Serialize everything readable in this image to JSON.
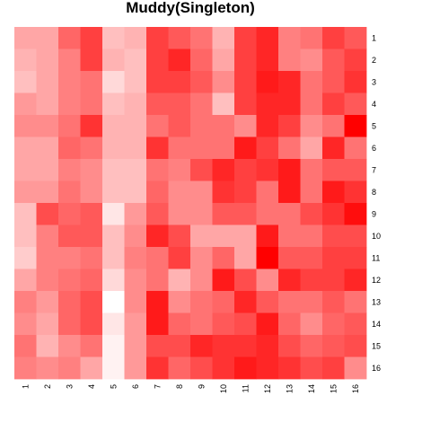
{
  "chart_data": {
    "type": "heatmap",
    "title": "Muddy(Singleton)",
    "xlabel": "",
    "ylabel": "",
    "x_categories": [
      "1",
      "2",
      "3",
      "4",
      "5",
      "6",
      "7",
      "8",
      "9",
      "10",
      "11",
      "12",
      "13",
      "14",
      "15",
      "16"
    ],
    "y_categories": [
      "1",
      "2",
      "3",
      "4",
      "5",
      "6",
      "7",
      "8",
      "9",
      "10",
      "11",
      "12",
      "13",
      "14",
      "15",
      "16"
    ],
    "value_range": [
      0,
      1
    ],
    "color_low": "#ffffff",
    "color_high": "#ff0000",
    "values": [
      [
        0.35,
        0.35,
        0.6,
        0.75,
        0.25,
        0.3,
        0.75,
        0.65,
        0.55,
        0.3,
        0.75,
        0.85,
        0.5,
        0.55,
        0.75,
        0.65
      ],
      [
        0.3,
        0.35,
        0.5,
        0.75,
        0.3,
        0.25,
        0.75,
        0.85,
        0.6,
        0.35,
        0.75,
        0.85,
        0.5,
        0.45,
        0.65,
        0.75
      ],
      [
        0.25,
        0.35,
        0.5,
        0.55,
        0.15,
        0.25,
        0.75,
        0.75,
        0.65,
        0.45,
        0.75,
        0.9,
        0.85,
        0.55,
        0.65,
        0.8
      ],
      [
        0.4,
        0.35,
        0.5,
        0.55,
        0.25,
        0.3,
        0.65,
        0.65,
        0.55,
        0.25,
        0.75,
        0.85,
        0.85,
        0.55,
        0.75,
        0.65
      ],
      [
        0.45,
        0.45,
        0.55,
        0.8,
        0.3,
        0.3,
        0.55,
        0.65,
        0.55,
        0.55,
        0.45,
        0.85,
        0.75,
        0.45,
        0.55,
        1.0
      ],
      [
        0.35,
        0.35,
        0.6,
        0.55,
        0.3,
        0.3,
        0.8,
        0.55,
        0.55,
        0.55,
        0.9,
        0.75,
        0.55,
        0.35,
        0.85,
        0.55
      ],
      [
        0.35,
        0.35,
        0.5,
        0.45,
        0.25,
        0.25,
        0.55,
        0.5,
        0.7,
        0.85,
        0.75,
        0.8,
        0.9,
        0.55,
        0.65,
        0.65
      ],
      [
        0.4,
        0.4,
        0.55,
        0.45,
        0.25,
        0.25,
        0.6,
        0.45,
        0.45,
        0.8,
        0.75,
        0.55,
        0.9,
        0.55,
        0.9,
        0.8
      ],
      [
        0.25,
        0.7,
        0.6,
        0.65,
        0.1,
        0.4,
        0.65,
        0.45,
        0.45,
        0.65,
        0.65,
        0.55,
        0.55,
        0.7,
        0.8,
        0.95
      ],
      [
        0.25,
        0.5,
        0.65,
        0.65,
        0.25,
        0.45,
        0.85,
        0.7,
        0.35,
        0.35,
        0.35,
        0.9,
        0.55,
        0.55,
        0.7,
        0.7
      ],
      [
        0.2,
        0.5,
        0.5,
        0.55,
        0.25,
        0.5,
        0.55,
        0.75,
        0.45,
        0.6,
        0.35,
        1.0,
        0.65,
        0.65,
        0.75,
        0.75
      ],
      [
        0.35,
        0.5,
        0.55,
        0.6,
        0.15,
        0.45,
        0.55,
        0.3,
        0.45,
        0.9,
        0.7,
        0.45,
        0.85,
        0.75,
        0.75,
        0.85
      ],
      [
        0.5,
        0.4,
        0.6,
        0.7,
        0.0,
        0.45,
        0.9,
        0.45,
        0.55,
        0.6,
        0.85,
        0.65,
        0.55,
        0.55,
        0.65,
        0.55
      ],
      [
        0.45,
        0.35,
        0.6,
        0.7,
        0.1,
        0.4,
        0.9,
        0.6,
        0.55,
        0.65,
        0.7,
        0.9,
        0.6,
        0.45,
        0.6,
        0.65
      ],
      [
        0.55,
        0.3,
        0.45,
        0.55,
        0.05,
        0.4,
        0.7,
        0.7,
        0.85,
        0.8,
        0.8,
        0.85,
        0.7,
        0.6,
        0.65,
        0.7
      ],
      [
        0.5,
        0.45,
        0.5,
        0.35,
        0.05,
        0.4,
        0.8,
        0.6,
        0.7,
        0.8,
        0.9,
        0.85,
        0.8,
        0.7,
        0.75,
        0.45
      ]
    ]
  }
}
